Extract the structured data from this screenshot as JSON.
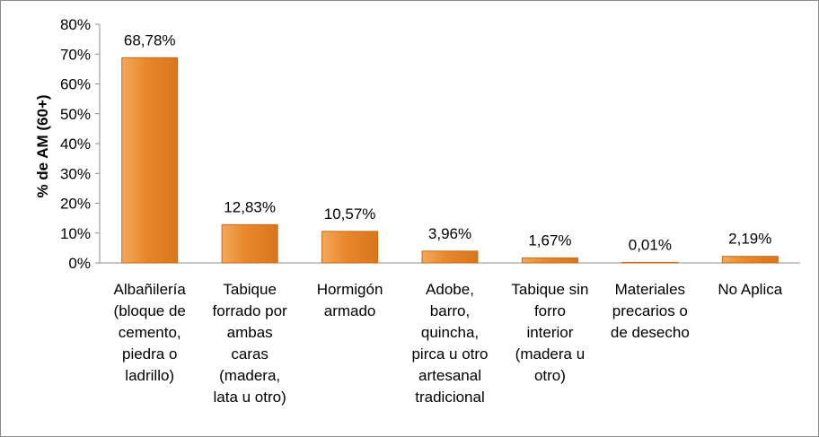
{
  "chart_data": {
    "type": "bar",
    "title": "",
    "xlabel": "",
    "ylabel": "% de AM (60+)",
    "ylim": [
      0,
      80
    ],
    "yticks": [
      "0%",
      "10%",
      "20%",
      "30%",
      "40%",
      "50%",
      "60%",
      "70%",
      "80%"
    ],
    "grid": false,
    "legend": "none",
    "bar_color": "#E8862A",
    "categories": [
      "Albañilería (bloque de cemento, piedra o ladrillo)",
      "Tabique forrado por ambas caras (madera, lata u otro)",
      "Hormigón armado",
      "Adobe, barro, quincha, pirca u otro artesanal tradicional",
      "Tabique sin forro interior (madera u otro)",
      "Materiales precarios o de desecho",
      "No Aplica"
    ],
    "category_lines": [
      [
        "Albañilería",
        "(bloque de",
        "cemento,",
        "piedra o",
        "ladrillo)"
      ],
      [
        "Tabique",
        "forrado por",
        "ambas",
        "caras",
        "(madera,",
        "lata u otro)"
      ],
      [
        "Hormigón",
        "armado"
      ],
      [
        "Adobe,",
        "barro,",
        "quincha,",
        "pirca u otro",
        "artesanal",
        "tradicional"
      ],
      [
        "Tabique sin",
        "forro",
        "interior",
        "(madera u",
        "otro)"
      ],
      [
        "Materiales",
        "precarios o",
        "de desecho"
      ],
      [
        "No Aplica"
      ]
    ],
    "values": [
      68.78,
      12.83,
      10.57,
      3.96,
      1.67,
      0.01,
      2.19
    ],
    "data_labels": [
      "68,78%",
      "12,83%",
      "10,57%",
      "3,96%",
      "1,67%",
      "0,01%",
      "2,19%"
    ]
  }
}
